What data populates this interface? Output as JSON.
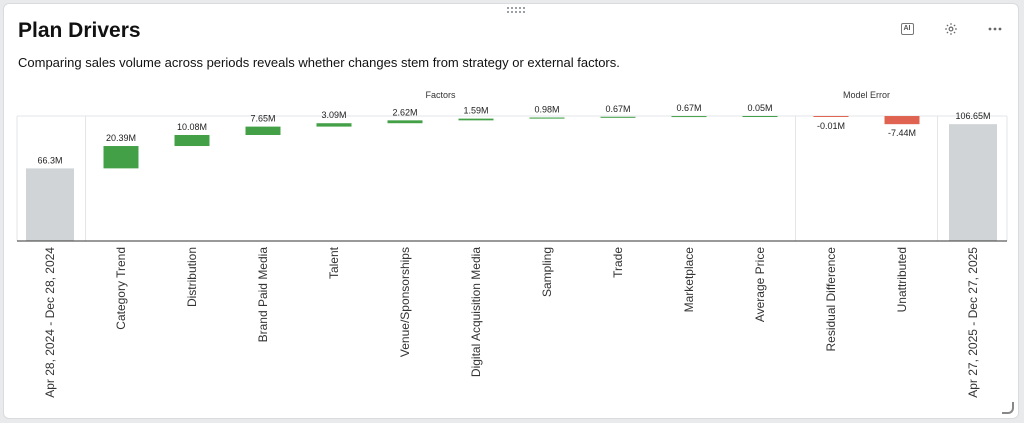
{
  "header": {
    "title": "Plan Drivers",
    "subtitle": "Comparing sales volume across periods reveals whether changes stem from strategy or external factors."
  },
  "toolbar": {
    "ai_label": "AI",
    "icons": [
      "ai-icon",
      "gear-icon",
      "more-icon"
    ]
  },
  "chart_data": {
    "type": "bar",
    "subtype": "waterfall",
    "groups": [
      {
        "label": "Factors",
        "categories": [
          "Category Trend",
          "Distribution",
          "Brand Paid Media",
          "Talent",
          "Venue/Sponsorships",
          "Digital Acquisition Media",
          "Sampling",
          "Trade",
          "Marketplace",
          "Average Price"
        ]
      },
      {
        "label": "Model Error",
        "categories": [
          "Residual Difference",
          "Unattributed"
        ]
      }
    ],
    "categories": [
      "Apr 28, 2024 - Dec 28, 2024",
      "Category Trend",
      "Distribution",
      "Brand Paid Media",
      "Talent",
      "Venue/Sponsorships",
      "Digital Acquisition Media",
      "Sampling",
      "Trade",
      "Marketplace",
      "Average Price",
      "Residual Difference",
      "Unattributed",
      "Apr 27, 2025 - Dec 27, 2025"
    ],
    "values": [
      66.3,
      20.39,
      10.08,
      7.65,
      3.09,
      2.62,
      1.59,
      0.98,
      0.67,
      0.67,
      0.05,
      -0.01,
      -7.44,
      106.65
    ],
    "kinds": [
      "total",
      "delta",
      "delta",
      "delta",
      "delta",
      "delta",
      "delta",
      "delta",
      "delta",
      "delta",
      "delta",
      "delta",
      "delta",
      "total"
    ],
    "data_labels": [
      "66.3M",
      "20.39M",
      "10.08M",
      "7.65M",
      "3.09M",
      "2.62M",
      "1.59M",
      "0.98M",
      "0.67M",
      "0.67M",
      "0.05M",
      "-0.01M",
      "-7.44M",
      "106.65M"
    ],
    "ylim": [
      0,
      114.1
    ],
    "colors": {
      "total": "#d1d4d6",
      "positive": "#43a047",
      "negative": "#e06351"
    },
    "grid": false,
    "legend": "none"
  }
}
